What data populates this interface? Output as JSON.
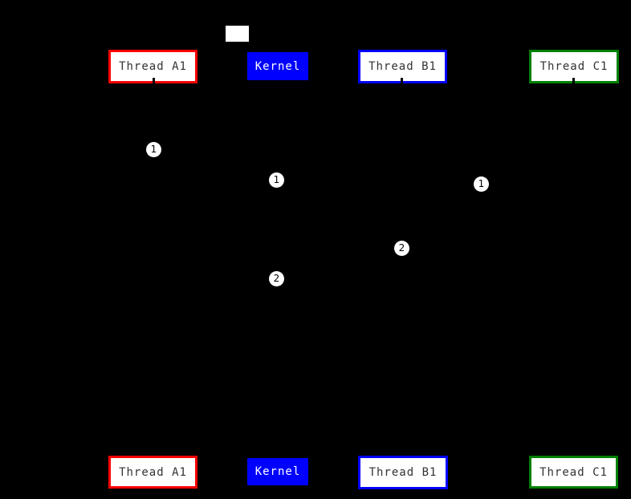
{
  "canvas": {
    "background": "#000000"
  },
  "legend": {
    "swatch_fill": "#ffffff"
  },
  "actors": [
    {
      "label": "Thread A1",
      "border_color": "#ff0000",
      "fill_color": "#ffffff",
      "text_color": "#333333"
    },
    {
      "label": "Kernel",
      "border_color": "#0000ff",
      "fill_color": "#0000ff",
      "text_color": "#ffffff"
    },
    {
      "label": "Thread B1",
      "border_color": "#0000ff",
      "fill_color": "#ffffff",
      "text_color": "#333333"
    },
    {
      "label": "Thread C1",
      "border_color": "#008000",
      "fill_color": "#ffffff",
      "text_color": "#333333"
    }
  ],
  "markers": [
    {
      "label": "1"
    },
    {
      "label": "1"
    },
    {
      "label": "1"
    },
    {
      "label": "2"
    },
    {
      "label": "2"
    }
  ]
}
